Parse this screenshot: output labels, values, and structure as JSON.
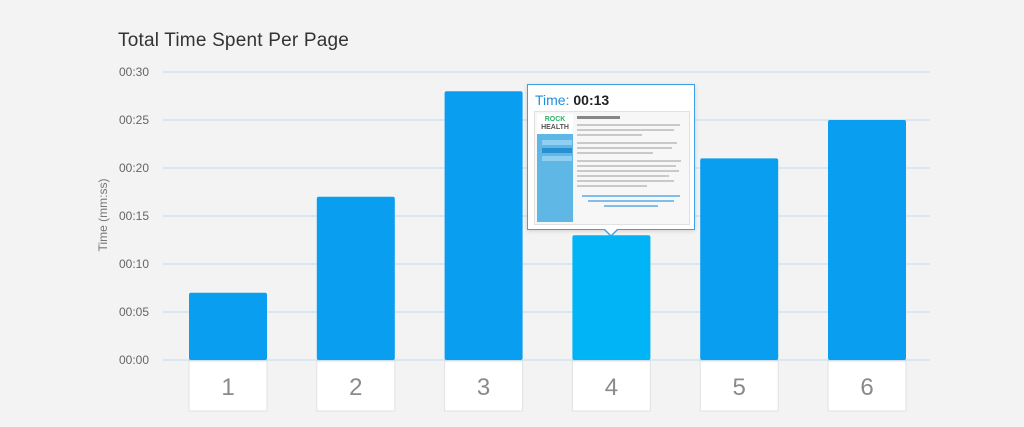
{
  "chart_data": {
    "type": "bar",
    "title": "Total Time Spent Per Page",
    "ylabel": "Time (mm:ss)",
    "xlabel": "",
    "categories": [
      "1",
      "2",
      "3",
      "4",
      "5",
      "6"
    ],
    "values": [
      7,
      17,
      28,
      13,
      21,
      25
    ],
    "value_unit": "seconds",
    "ylim": [
      0,
      30
    ],
    "yticks": [
      0,
      5,
      10,
      15,
      20,
      25,
      30
    ],
    "ytick_labels": [
      "00:00",
      "00:05",
      "00:10",
      "00:15",
      "00:20",
      "00:25",
      "00:30"
    ],
    "grid": true,
    "legend": "none",
    "highlighted_category": "4",
    "bar_color": "#0a9ef0",
    "highlight_color": "#00b4f5",
    "grid_color": "#bcdcef"
  },
  "tooltip": {
    "label": "Time:",
    "value": "00:13",
    "thumbnail_logo_top": "ROCK",
    "thumbnail_logo_bottom": "HEALTH"
  }
}
